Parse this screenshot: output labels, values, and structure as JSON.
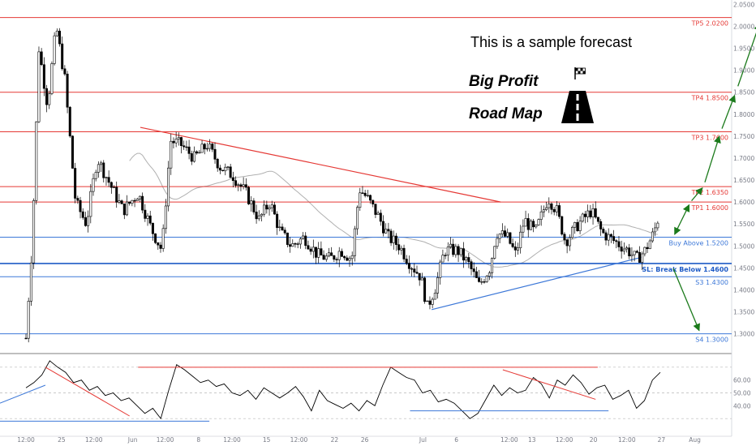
{
  "annotation": {
    "line1": "This is a sample forecast",
    "line2": "Big Profit",
    "line3": "Road Map"
  },
  "colors": {
    "resistance": "#e53935",
    "support": "#1e5bc6",
    "support_light": "#3d78d8",
    "sma": "#b0b0b0",
    "arrow": "#1b7a1b",
    "candle": "#000000",
    "axis_text": "#787b86"
  },
  "icons": [
    "checkered-flag-icon",
    "road-icon"
  ],
  "chart_data": [
    {
      "type": "candlestick",
      "title": "",
      "ylim": [
        1.255,
        2.06
      ],
      "y_ticks": [
        "2.0500",
        "2.0000",
        "1.9500",
        "1.9000",
        "1.8500",
        "1.8000",
        "1.7500",
        "1.7000",
        "1.6500",
        "1.6000",
        "1.5500",
        "1.5000",
        "1.4500",
        "1.4000",
        "1.3500",
        "1.3000"
      ],
      "x_ticks": [
        "12:00",
        "25",
        "12:00",
        "Jun",
        "12:00",
        "8",
        "12:00",
        "15",
        "12:00",
        "22",
        "26",
        "Jul",
        "6",
        "12:00",
        "13",
        "12:00",
        "20",
        "12:00",
        "27",
        "Aug"
      ],
      "price_anchors": [
        {
          "day": 0.0,
          "price": 1.29
        },
        {
          "day": 0.3,
          "price": 1.52
        },
        {
          "day": 0.6,
          "price": 1.95
        },
        {
          "day": 1.0,
          "price": 1.82
        },
        {
          "day": 1.4,
          "price": 2.0
        },
        {
          "day": 1.8,
          "price": 1.88
        },
        {
          "day": 2.3,
          "price": 1.6
        },
        {
          "day": 2.8,
          "price": 1.55
        },
        {
          "day": 3.3,
          "price": 1.7
        },
        {
          "day": 3.8,
          "price": 1.65
        },
        {
          "day": 4.5,
          "price": 1.58
        },
        {
          "day": 5.2,
          "price": 1.62
        },
        {
          "day": 5.8,
          "price": 1.54
        },
        {
          "day": 6.3,
          "price": 1.49
        },
        {
          "day": 6.7,
          "price": 1.74
        },
        {
          "day": 7.2,
          "price": 1.73
        },
        {
          "day": 7.8,
          "price": 1.7
        },
        {
          "day": 8.4,
          "price": 1.73
        },
        {
          "day": 9.0,
          "price": 1.68
        },
        {
          "day": 9.6,
          "price": 1.66
        },
        {
          "day": 10.2,
          "price": 1.62
        },
        {
          "day": 10.8,
          "price": 1.56
        },
        {
          "day": 11.3,
          "price": 1.6
        },
        {
          "day": 11.8,
          "price": 1.53
        },
        {
          "day": 12.3,
          "price": 1.5
        },
        {
          "day": 12.9,
          "price": 1.52
        },
        {
          "day": 13.5,
          "price": 1.48
        },
        {
          "day": 14.1,
          "price": 1.47
        },
        {
          "day": 14.6,
          "price": 1.49
        },
        {
          "day": 15.1,
          "price": 1.47
        },
        {
          "day": 15.45,
          "price": 1.63
        },
        {
          "day": 15.8,
          "price": 1.61
        },
        {
          "day": 16.3,
          "price": 1.57
        },
        {
          "day": 16.8,
          "price": 1.52
        },
        {
          "day": 17.3,
          "price": 1.5
        },
        {
          "day": 17.8,
          "price": 1.46
        },
        {
          "day": 18.3,
          "price": 1.43
        },
        {
          "day": 18.6,
          "price": 1.36
        },
        {
          "day": 19.0,
          "price": 1.41
        },
        {
          "day": 19.4,
          "price": 1.49
        },
        {
          "day": 20.0,
          "price": 1.49
        },
        {
          "day": 20.5,
          "price": 1.46
        },
        {
          "day": 21.0,
          "price": 1.41
        },
        {
          "day": 21.5,
          "price": 1.45
        },
        {
          "day": 21.8,
          "price": 1.53
        },
        {
          "day": 22.3,
          "price": 1.52
        },
        {
          "day": 22.7,
          "price": 1.48
        },
        {
          "day": 23.1,
          "price": 1.56
        },
        {
          "day": 23.6,
          "price": 1.53
        },
        {
          "day": 24.2,
          "price": 1.61
        },
        {
          "day": 24.6,
          "price": 1.58
        },
        {
          "day": 25.0,
          "price": 1.51
        },
        {
          "day": 25.6,
          "price": 1.55
        },
        {
          "day": 26.2,
          "price": 1.58
        },
        {
          "day": 26.7,
          "price": 1.53
        },
        {
          "day": 27.3,
          "price": 1.51
        },
        {
          "day": 27.9,
          "price": 1.49
        },
        {
          "day": 28.3,
          "price": 1.47
        },
        {
          "day": 28.7,
          "price": 1.49
        },
        {
          "day": 29.1,
          "price": 1.53
        },
        {
          "day": 29.4,
          "price": 1.58
        }
      ],
      "levels": [
        {
          "label": "TP5 2.0200",
          "price": 2.02,
          "kind": "resistance"
        },
        {
          "label": "TP4 1.8500",
          "price": 1.85,
          "kind": "resistance"
        },
        {
          "label": "TP3 1.7600",
          "price": 1.76,
          "kind": "resistance"
        },
        {
          "label": "TP2 1.6350",
          "price": 1.635,
          "kind": "resistance"
        },
        {
          "label": "TP1 1.6000",
          "price": 1.6,
          "kind": "resistance"
        },
        {
          "label": "Buy Above 1.5200",
          "price": 1.52,
          "kind": "support"
        },
        {
          "label": "SL: Break Below 1.4600",
          "price": 1.46,
          "kind": "support_bold"
        },
        {
          "label": "S3 1.4300",
          "price": 1.43,
          "kind": "support"
        },
        {
          "label": "S4 1.3000",
          "price": 1.3,
          "kind": "support"
        }
      ],
      "trendlines": [
        {
          "from": {
            "day": 5.3,
            "price": 1.77
          },
          "to": {
            "day": 22.0,
            "price": 1.6
          },
          "kind": "resistance"
        },
        {
          "from": {
            "day": 18.8,
            "price": 1.355
          },
          "to": {
            "day": 28.6,
            "price": 1.475
          },
          "kind": "support"
        }
      ],
      "forecast_path": [
        {
          "day": 30.0,
          "price": 1.52
        },
        {
          "day": 30.8,
          "price": 1.6
        },
        {
          "day": 31.4,
          "price": 1.635
        },
        {
          "day": 32.2,
          "price": 1.76
        },
        {
          "day": 32.9,
          "price": 1.85
        },
        {
          "day": 34.1,
          "price": 2.02
        }
      ],
      "alternate_path": [
        {
          "day": 30.0,
          "price": 1.46
        },
        {
          "day": 31.2,
          "price": 1.3
        }
      ]
    },
    {
      "type": "line",
      "title": "",
      "ylim": [
        20,
        80
      ],
      "y_ticks": [
        "60.00",
        "50.00",
        "40.00"
      ],
      "y_tick_values": [
        60,
        50,
        40
      ],
      "bands": [
        70,
        50,
        30
      ],
      "values": [
        54,
        58,
        64,
        75,
        70,
        66,
        58,
        60,
        52,
        55,
        48,
        50,
        44,
        46,
        40,
        34,
        38,
        30,
        52,
        72,
        68,
        63,
        58,
        60,
        55,
        57,
        50,
        48,
        52,
        45,
        54,
        50,
        46,
        50,
        55,
        47,
        36,
        52,
        44,
        41,
        38,
        42,
        36,
        44,
        40,
        56,
        70,
        66,
        62,
        60,
        50,
        52,
        43,
        45,
        42,
        36,
        30,
        34,
        45,
        56,
        48,
        54,
        50,
        52,
        62,
        57,
        46,
        60,
        56,
        64,
        58,
        49,
        54,
        56,
        45,
        48,
        52,
        38,
        44,
        60,
        66
      ],
      "value_days_range": [
        0.0,
        29.4
      ]
    }
  ]
}
